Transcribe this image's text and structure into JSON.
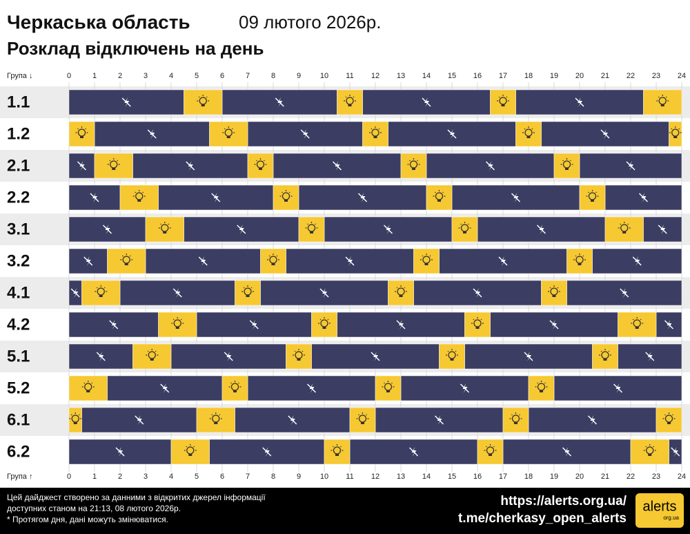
{
  "chart_data": {
    "type": "timeline",
    "title": "Черкаська область",
    "date": "09 лютого 2026р.",
    "subtitle": "Розклад відключень на день",
    "group_label_top": "Група ↓",
    "group_label_bottom": "Група ↑",
    "xlim": [
      0,
      24
    ],
    "xticks": [
      0,
      1,
      2,
      3,
      4,
      5,
      6,
      7,
      8,
      9,
      10,
      11,
      12,
      13,
      14,
      15,
      16,
      17,
      18,
      19,
      20,
      21,
      22,
      23,
      24
    ],
    "off_color": "#3b3d63",
    "on_color": "#f6c832",
    "rows": [
      {
        "name": "1.1",
        "off": [
          [
            0,
            4.5
          ],
          [
            6,
            10.5
          ],
          [
            11.5,
            16.5
          ],
          [
            17.5,
            22.5
          ]
        ],
        "on": [
          [
            4.5,
            6
          ],
          [
            10.5,
            11.5
          ],
          [
            16.5,
            17.5
          ],
          [
            22.5,
            24
          ]
        ]
      },
      {
        "name": "1.2",
        "off": [
          [
            1,
            5.5
          ],
          [
            7,
            11.5
          ],
          [
            12.5,
            17.5
          ],
          [
            18.5,
            23.5
          ]
        ],
        "on": [
          [
            0,
            1
          ],
          [
            5.5,
            7
          ],
          [
            11.5,
            12.5
          ],
          [
            17.5,
            18.5
          ],
          [
            23.5,
            24
          ]
        ]
      },
      {
        "name": "2.1",
        "off": [
          [
            0,
            1
          ],
          [
            2.5,
            7
          ],
          [
            8,
            13
          ],
          [
            14,
            19
          ],
          [
            20,
            24
          ]
        ],
        "on": [
          [
            1,
            2.5
          ],
          [
            7,
            8
          ],
          [
            13,
            14
          ],
          [
            19,
            20
          ]
        ]
      },
      {
        "name": "2.2",
        "off": [
          [
            0,
            2
          ],
          [
            3.5,
            8
          ],
          [
            9,
            14
          ],
          [
            15,
            20
          ],
          [
            21,
            24
          ]
        ],
        "on": [
          [
            2,
            3.5
          ],
          [
            8,
            9
          ],
          [
            14,
            15
          ],
          [
            20,
            21
          ]
        ]
      },
      {
        "name": "3.1",
        "off": [
          [
            0,
            3
          ],
          [
            4.5,
            9
          ],
          [
            10,
            15
          ],
          [
            16,
            21
          ],
          [
            22.5,
            24
          ]
        ],
        "on": [
          [
            3,
            4.5
          ],
          [
            9,
            10
          ],
          [
            15,
            16
          ],
          [
            21,
            22.5
          ]
        ]
      },
      {
        "name": "3.2",
        "off": [
          [
            0,
            1.5
          ],
          [
            3,
            7.5
          ],
          [
            8.5,
            13.5
          ],
          [
            14.5,
            19.5
          ],
          [
            20.5,
            24
          ]
        ],
        "on": [
          [
            1.5,
            3
          ],
          [
            7.5,
            8.5
          ],
          [
            13.5,
            14.5
          ],
          [
            19.5,
            20.5
          ]
        ]
      },
      {
        "name": "4.1",
        "off": [
          [
            0,
            0.5
          ],
          [
            2,
            6.5
          ],
          [
            7.5,
            12.5
          ],
          [
            13.5,
            18.5
          ],
          [
            19.5,
            24
          ]
        ],
        "on": [
          [
            0.5,
            2
          ],
          [
            6.5,
            7.5
          ],
          [
            12.5,
            13.5
          ],
          [
            18.5,
            19.5
          ]
        ]
      },
      {
        "name": "4.2",
        "off": [
          [
            0,
            3.5
          ],
          [
            5,
            9.5
          ],
          [
            10.5,
            15.5
          ],
          [
            16.5,
            21.5
          ],
          [
            23,
            24
          ]
        ],
        "on": [
          [
            3.5,
            5
          ],
          [
            9.5,
            10.5
          ],
          [
            15.5,
            16.5
          ],
          [
            21.5,
            23
          ]
        ]
      },
      {
        "name": "5.1",
        "off": [
          [
            0,
            2.5
          ],
          [
            4,
            8.5
          ],
          [
            9.5,
            14.5
          ],
          [
            15.5,
            20.5
          ],
          [
            21.5,
            24
          ]
        ],
        "on": [
          [
            2.5,
            4
          ],
          [
            8.5,
            9.5
          ],
          [
            14.5,
            15.5
          ],
          [
            20.5,
            21.5
          ]
        ]
      },
      {
        "name": "5.2",
        "off": [
          [
            1.5,
            6
          ],
          [
            7,
            12
          ],
          [
            13,
            18
          ],
          [
            19,
            24
          ]
        ],
        "on": [
          [
            0,
            1.5
          ],
          [
            6,
            7
          ],
          [
            12,
            13
          ],
          [
            18,
            19
          ]
        ]
      },
      {
        "name": "6.1",
        "off": [
          [
            0.5,
            5
          ],
          [
            6.5,
            11
          ],
          [
            12,
            17
          ],
          [
            18,
            23
          ]
        ],
        "on": [
          [
            0,
            0.5
          ],
          [
            5,
            6.5
          ],
          [
            11,
            12
          ],
          [
            17,
            18
          ],
          [
            23,
            24
          ]
        ]
      },
      {
        "name": "6.2",
        "off": [
          [
            0,
            4
          ],
          [
            5.5,
            10
          ],
          [
            11,
            16
          ],
          [
            17,
            22
          ],
          [
            23.5,
            24
          ]
        ],
        "on": [
          [
            4,
            5.5
          ],
          [
            10,
            11
          ],
          [
            16,
            17
          ],
          [
            22,
            23.5
          ]
        ]
      }
    ],
    "footer": {
      "note_lines": [
        "Цей дайджест створено за данними з відкритих джерел інформації",
        "доступних станом на 21:13, 08 лютого 2026р.",
        "* Протягом дня, дані можуть змінюватися."
      ],
      "url": "https://alerts.org.ua/",
      "channel": "t.me/cherkasy_open_alerts",
      "logo": "alerts",
      "logo_sub": "org.ua"
    }
  }
}
